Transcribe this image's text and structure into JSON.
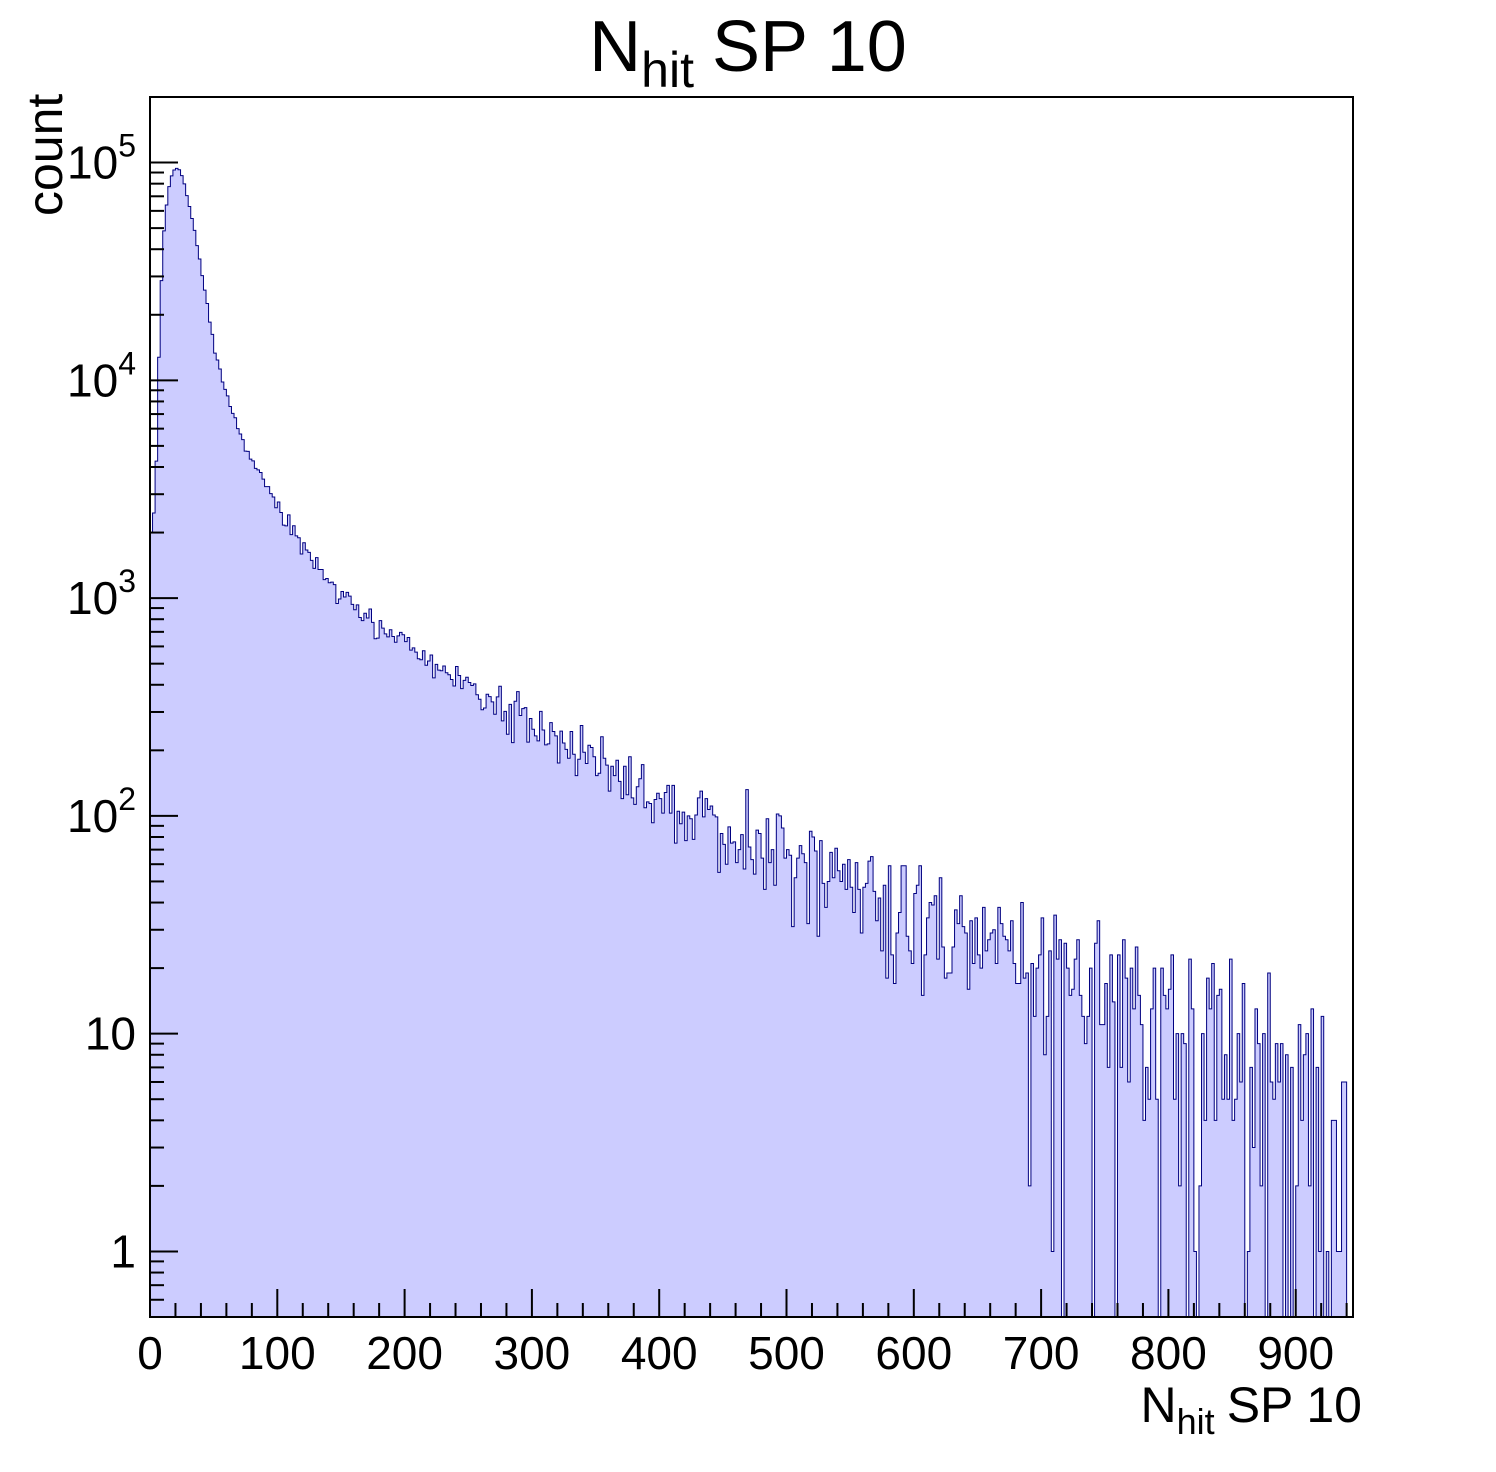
{
  "title": {
    "prefix": "N",
    "sub": "hit",
    "suffix": "SP 10"
  },
  "axes": {
    "x": {
      "title_prefix": "N",
      "title_sub": "hit",
      "title_suffix": "SP 10",
      "min": 0,
      "max": 945,
      "major_ticks": [
        0,
        100,
        200,
        300,
        400,
        500,
        600,
        700,
        800,
        900
      ],
      "minor_step": 20
    },
    "y": {
      "label": "count",
      "scale": "log",
      "min": 0.5,
      "max": 200000,
      "ticks": [
        {
          "value": 1,
          "label": "1"
        },
        {
          "value": 10,
          "label": "10"
        },
        {
          "value": 100,
          "base": "10",
          "exp": "2"
        },
        {
          "value": 1000,
          "base": "10",
          "exp": "3"
        },
        {
          "value": 10000,
          "base": "10",
          "exp": "4"
        },
        {
          "value": 100000,
          "base": "10",
          "exp": "5"
        }
      ]
    }
  },
  "chart_data": {
    "type": "histogram",
    "title": "N_hit SP 10",
    "xlabel": "N_hit SP 10",
    "ylabel": "count",
    "y_scale": "log",
    "x_range": [
      0,
      940
    ],
    "y_range": [
      0.5,
      200000
    ],
    "bin_width": 2,
    "fill_color": "#ccccff",
    "line_color": "#000080",
    "frame_color": "#000000",
    "noise": {
      "model": "poisson-approx",
      "factor": 2.0,
      "seed": 20
    },
    "envelope_points": [
      [
        0,
        1500
      ],
      [
        2,
        2800
      ],
      [
        4,
        2200
      ],
      [
        6,
        8000
      ],
      [
        8,
        20000
      ],
      [
        10,
        40000
      ],
      [
        12,
        58000
      ],
      [
        14,
        72000
      ],
      [
        16,
        83000
      ],
      [
        18,
        91000
      ],
      [
        20,
        95000
      ],
      [
        22,
        94000
      ],
      [
        24,
        90000
      ],
      [
        26,
        84000
      ],
      [
        28,
        76000
      ],
      [
        30,
        67000
      ],
      [
        33,
        55000
      ],
      [
        36,
        45000
      ],
      [
        39,
        36000
      ],
      [
        42,
        28000
      ],
      [
        45,
        22000
      ],
      [
        48,
        17500
      ],
      [
        51,
        14000
      ],
      [
        54,
        11800
      ],
      [
        58,
        9500
      ],
      [
        62,
        8000
      ],
      [
        66,
        6800
      ],
      [
        70,
        5900
      ],
      [
        75,
        5000
      ],
      [
        80,
        4300
      ],
      [
        85,
        3750
      ],
      [
        90,
        3300
      ],
      [
        95,
        2950
      ],
      [
        100,
        2650
      ],
      [
        110,
        2150
      ],
      [
        120,
        1750
      ],
      [
        130,
        1450
      ],
      [
        140,
        1230
      ],
      [
        150,
        1060
      ],
      [
        160,
        930
      ],
      [
        170,
        830
      ],
      [
        180,
        750
      ],
      [
        190,
        680
      ],
      [
        200,
        615
      ],
      [
        215,
        530
      ],
      [
        230,
        465
      ],
      [
        245,
        410
      ],
      [
        260,
        360
      ],
      [
        275,
        320
      ],
      [
        290,
        285
      ],
      [
        305,
        252
      ],
      [
        320,
        225
      ],
      [
        335,
        200
      ],
      [
        350,
        180
      ],
      [
        365,
        160
      ],
      [
        380,
        143
      ],
      [
        395,
        128
      ],
      [
        410,
        115
      ],
      [
        425,
        104
      ],
      [
        440,
        94
      ],
      [
        455,
        85
      ],
      [
        470,
        77
      ],
      [
        485,
        70
      ],
      [
        500,
        64
      ],
      [
        515,
        58
      ],
      [
        530,
        53
      ],
      [
        545,
        48
      ],
      [
        560,
        44
      ],
      [
        575,
        40
      ],
      [
        590,
        37
      ],
      [
        605,
        34
      ],
      [
        620,
        31
      ],
      [
        635,
        28
      ],
      [
        650,
        26
      ],
      [
        665,
        24
      ],
      [
        680,
        22
      ],
      [
        695,
        20
      ],
      [
        710,
        19
      ],
      [
        725,
        17
      ],
      [
        740,
        16
      ],
      [
        755,
        15
      ],
      [
        770,
        14
      ],
      [
        785,
        13
      ],
      [
        800,
        12
      ],
      [
        815,
        11
      ],
      [
        830,
        10
      ],
      [
        845,
        9
      ],
      [
        860,
        8.5
      ],
      [
        875,
        8
      ],
      [
        890,
        7
      ],
      [
        905,
        6
      ],
      [
        915,
        5
      ],
      [
        925,
        4
      ],
      [
        935,
        3
      ],
      [
        940,
        2
      ]
    ]
  }
}
